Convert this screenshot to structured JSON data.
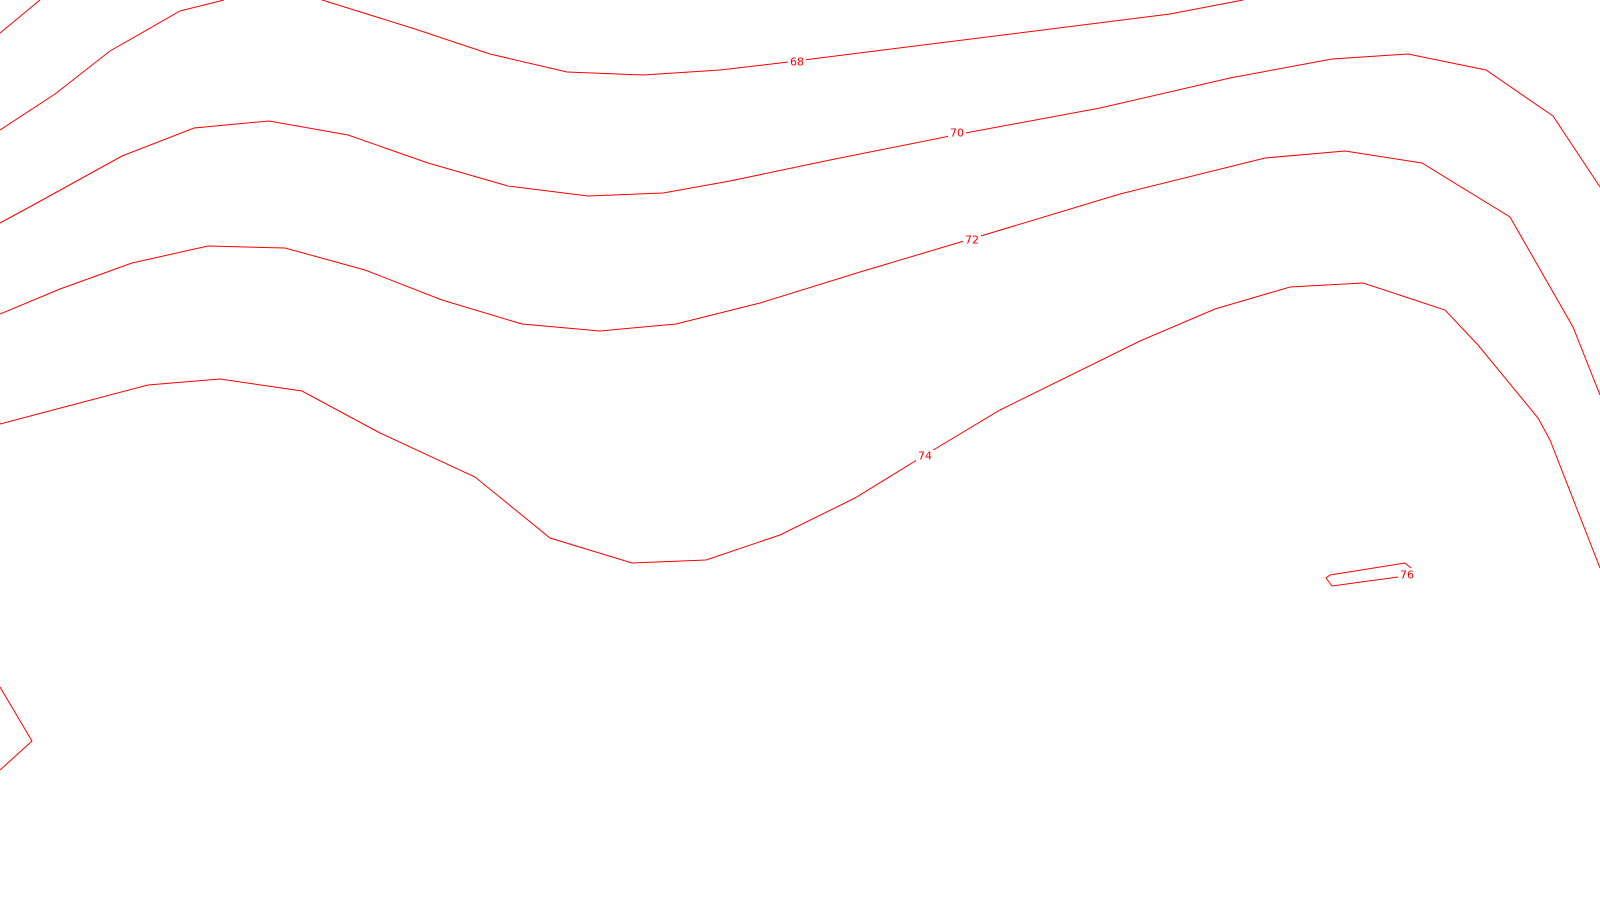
{
  "map": {
    "line_color": "#ff0000",
    "label_color": "#ff0000",
    "background_color": "#ffffff",
    "contour_labels": {
      "c68": "68",
      "c70": "70",
      "c72": "72",
      "c74": "74",
      "c76": "76"
    }
  }
}
